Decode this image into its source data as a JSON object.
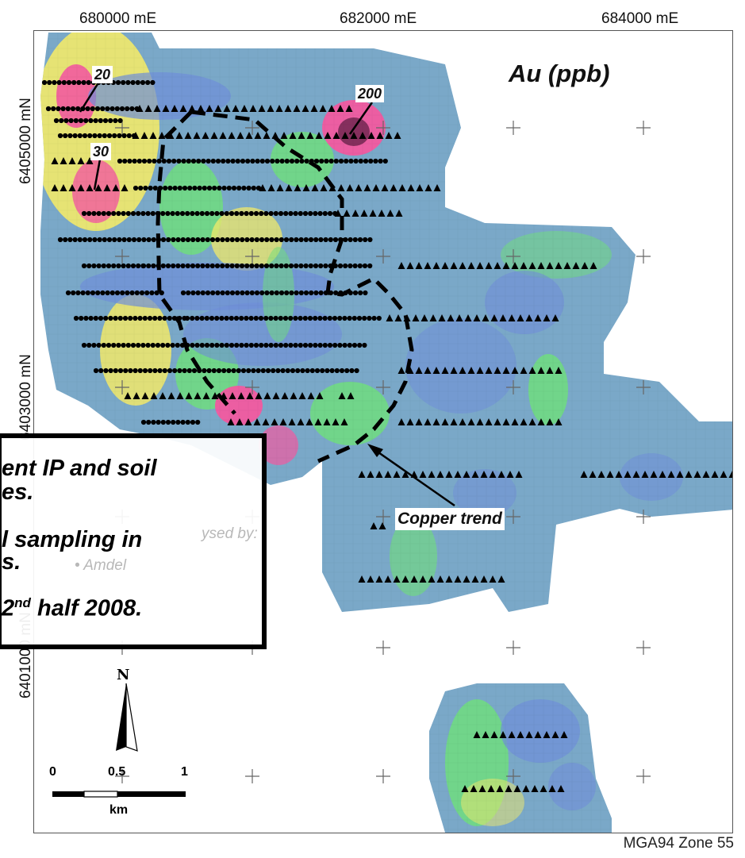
{
  "map": {
    "title": "Au (ppb)",
    "zone": "MGA94 Zone 55",
    "easting_ticks": [
      "680000 mE",
      "682000 mE",
      "684000 mE"
    ],
    "northing_ticks": [
      "6405000 mN",
      "6403000 mN",
      "6401000 mN"
    ],
    "contour_labels": [
      "20",
      "200",
      "30"
    ],
    "feature_label": "Copper trend",
    "scale": {
      "start": "0",
      "mid": "0.5",
      "end": "1",
      "unit": "km"
    },
    "north_arrow": "N"
  },
  "notes": {
    "line1": "ent IP and soil",
    "line2": "es.",
    "line3": "l sampling in",
    "line4": "s.",
    "line5_a": "2",
    "line5_sup": "nd",
    "line5_b": " half 2008.",
    "ghost1": "ysed by:",
    "ghost2": "• Amdel"
  },
  "colors": {
    "high_anomaly": "#f25aa0",
    "moderate": "#f2e96a",
    "medium": "#6fe07a",
    "low": "#6f8ed8",
    "background_low": "#7aa8c8"
  }
}
